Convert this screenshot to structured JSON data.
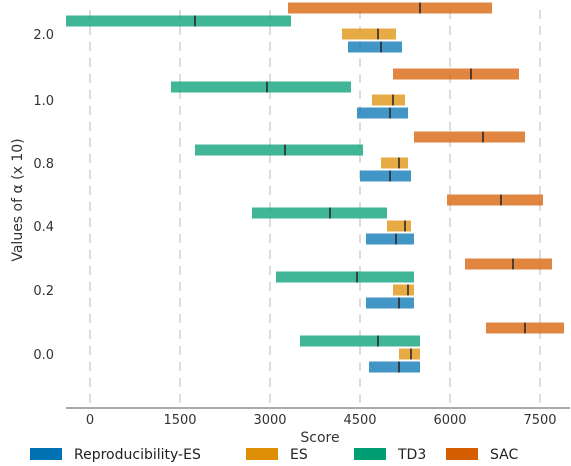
{
  "chart_data": {
    "type": "interval",
    "xlabel": "Score",
    "ylabel": "Values of α (x 10)",
    "xlim": [
      -400,
      8000
    ],
    "xticks": [
      0,
      1500,
      3000,
      4500,
      6000,
      7500
    ],
    "xtick_labels": [
      "0",
      "1500",
      "3000",
      "4500",
      "6000",
      "7500"
    ],
    "categories": [
      "2.0",
      "1.0",
      "0.8",
      "0.4",
      "0.2",
      "0.0"
    ],
    "grid": "vertical dashed",
    "legend_position": "bottom",
    "series": [
      {
        "name": "Reproducibility-ES",
        "color": "#0173b2",
        "intervals": [
          {
            "category": "2.0",
            "low": 4300,
            "mean": 4850,
            "high": 5200
          },
          {
            "category": "1.0",
            "low": 4450,
            "mean": 5000,
            "high": 5300
          },
          {
            "category": "0.8",
            "low": 4500,
            "mean": 5000,
            "high": 5350
          },
          {
            "category": "0.4",
            "low": 4600,
            "mean": 5100,
            "high": 5400
          },
          {
            "category": "0.2",
            "low": 4600,
            "mean": 5150,
            "high": 5400
          },
          {
            "category": "0.0",
            "low": 4650,
            "mean": 5150,
            "high": 5500
          }
        ]
      },
      {
        "name": "ES",
        "color": "#de8f05",
        "intervals": [
          {
            "category": "2.0",
            "low": 4200,
            "mean": 4800,
            "high": 5100
          },
          {
            "category": "1.0",
            "low": 4700,
            "mean": 5050,
            "high": 5250
          },
          {
            "category": "0.8",
            "low": 4850,
            "mean": 5150,
            "high": 5300
          },
          {
            "category": "0.4",
            "low": 4950,
            "mean": 5250,
            "high": 5350
          },
          {
            "category": "0.2",
            "low": 5050,
            "mean": 5300,
            "high": 5400
          },
          {
            "category": "0.0",
            "low": 5150,
            "mean": 5350,
            "high": 5500
          }
        ]
      },
      {
        "name": "TD3",
        "color": "#029e73",
        "intervals": [
          {
            "category": "2.0",
            "low": -400,
            "mean": 1750,
            "high": 3350
          },
          {
            "category": "1.0",
            "low": 1350,
            "mean": 2950,
            "high": 4350
          },
          {
            "category": "0.8",
            "low": 1750,
            "mean": 3250,
            "high": 4550
          },
          {
            "category": "0.4",
            "low": 2700,
            "mean": 4000,
            "high": 4950
          },
          {
            "category": "0.2",
            "low": 3100,
            "mean": 4450,
            "high": 5400
          },
          {
            "category": "0.0",
            "low": 3500,
            "mean": 4800,
            "high": 5500
          }
        ]
      },
      {
        "name": "SAC",
        "color": "#d55e00",
        "intervals": [
          {
            "category": "2.0",
            "low": 3300,
            "mean": 5500,
            "high": 6700
          },
          {
            "category": "1.0",
            "low": 5050,
            "mean": 6350,
            "high": 7150
          },
          {
            "category": "0.8",
            "low": 5400,
            "mean": 6550,
            "high": 7250
          },
          {
            "category": "0.4",
            "low": 5950,
            "mean": 6850,
            "high": 7550
          },
          {
            "category": "0.2",
            "low": 6250,
            "mean": 7050,
            "high": 7700
          },
          {
            "category": "0.0",
            "low": 6600,
            "mean": 7250,
            "high": 7900
          }
        ]
      }
    ]
  }
}
